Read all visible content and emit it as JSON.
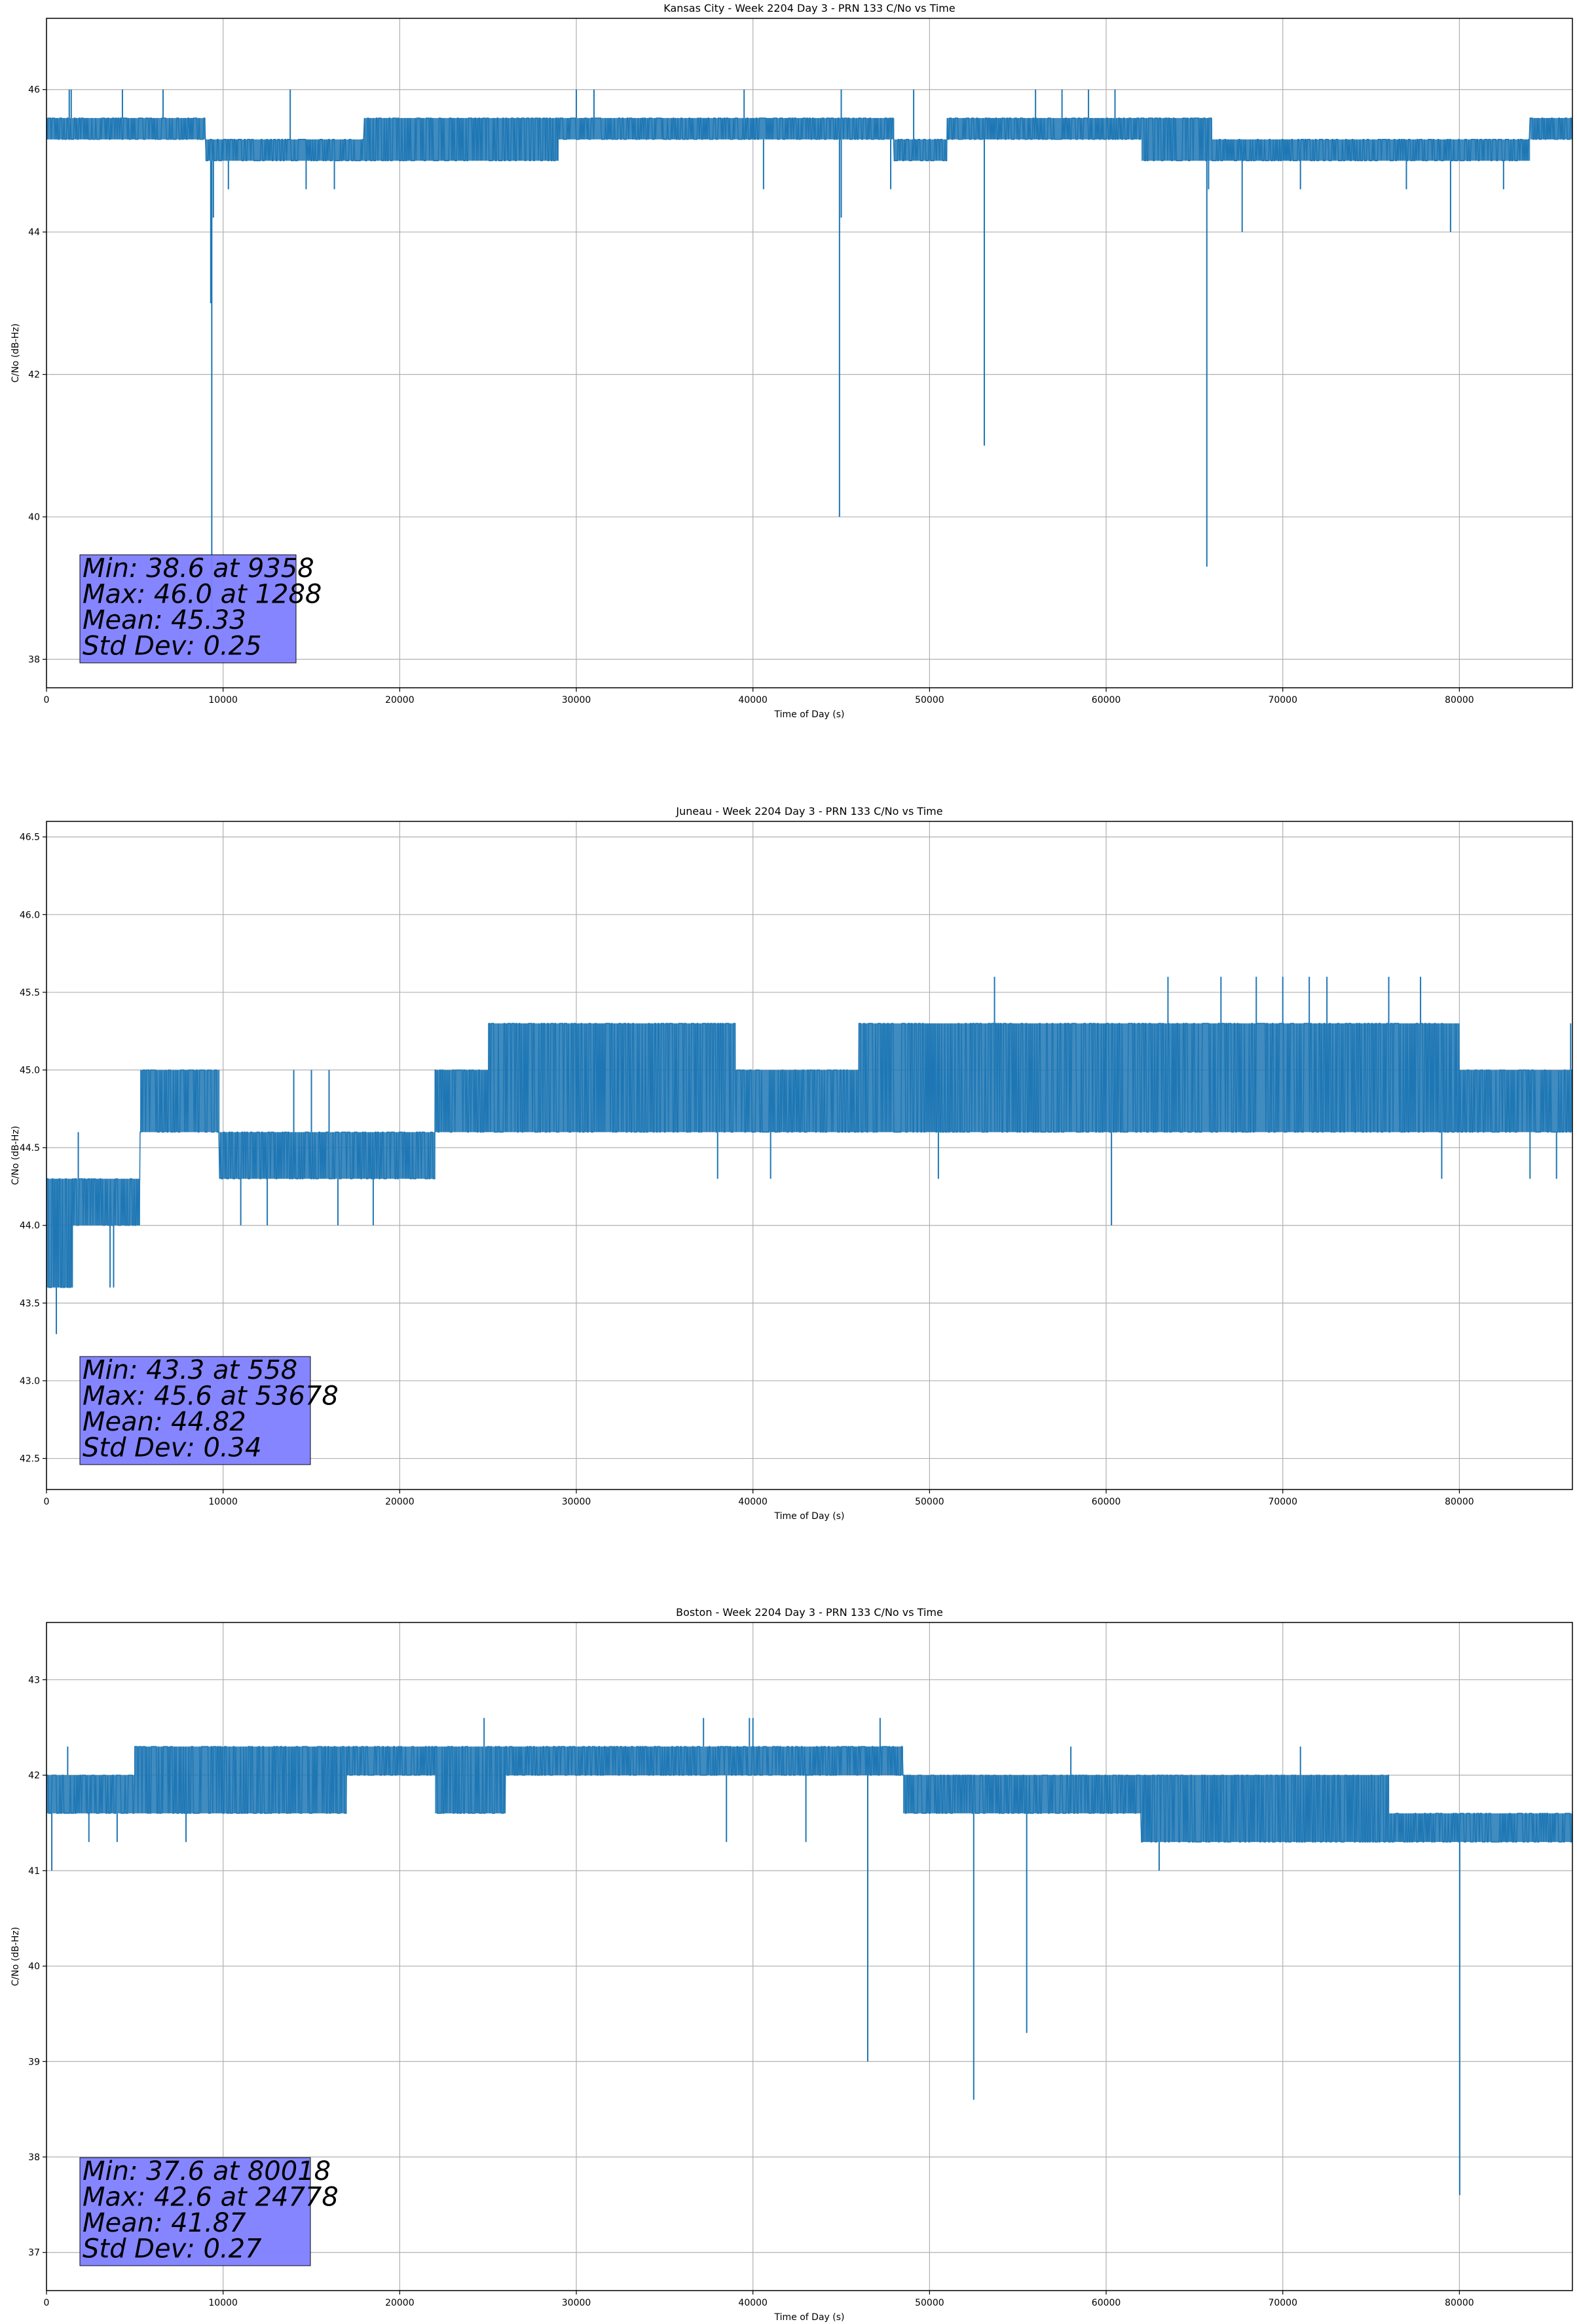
{
  "colors": {
    "series": "#1f77b4",
    "grid": "#b0b0b0",
    "axes": "#000000",
    "stats_box_fill": "#7f7fff",
    "stats_box_edge": "#000000"
  },
  "chart_data": [
    {
      "type": "line",
      "title": "Kansas City - Week 2204 Day 3 - PRN 133 C/No vs Time",
      "xlabel": "Time of Day (s)",
      "ylabel": "C/No (dB-Hz)",
      "xlim": [
        0,
        86400
      ],
      "ylim": [
        37.6,
        47.0
      ],
      "xticks": [
        0,
        10000,
        20000,
        30000,
        40000,
        50000,
        60000,
        70000,
        80000
      ],
      "yticks": [
        38,
        40,
        42,
        44,
        46
      ],
      "grid": true,
      "stats": [
        "Min: 38.6 at 9358",
        "Max: 46.0 at 1288",
        "Mean: 45.33",
        "Std Dev: 0.25"
      ],
      "segments": [
        {
          "x0": 0,
          "x1": 9000,
          "lo": 45.3,
          "hi": 45.6
        },
        {
          "x0": 9000,
          "x1": 18000,
          "lo": 45.0,
          "hi": 45.3
        },
        {
          "x0": 18000,
          "x1": 29000,
          "lo": 45.0,
          "hi": 45.6
        },
        {
          "x0": 29000,
          "x1": 40000,
          "lo": 45.3,
          "hi": 45.6
        },
        {
          "x0": 40000,
          "x1": 48000,
          "lo": 45.3,
          "hi": 45.6
        },
        {
          "x0": 48000,
          "x1": 51000,
          "lo": 45.0,
          "hi": 45.3
        },
        {
          "x0": 51000,
          "x1": 55000,
          "lo": 45.3,
          "hi": 45.6
        },
        {
          "x0": 55000,
          "x1": 62000,
          "lo": 45.3,
          "hi": 45.6
        },
        {
          "x0": 62000,
          "x1": 66000,
          "lo": 45.0,
          "hi": 45.6
        },
        {
          "x0": 66000,
          "x1": 84000,
          "lo": 45.0,
          "hi": 45.3
        },
        {
          "x0": 84000,
          "x1": 86400,
          "lo": 45.3,
          "hi": 45.6
        }
      ],
      "spikes": [
        {
          "x": 9358,
          "y": 38.6
        },
        {
          "x": 9300,
          "y": 43.0
        },
        {
          "x": 9450,
          "y": 44.2
        },
        {
          "x": 44900,
          "y": 40.0
        },
        {
          "x": 45000,
          "y": 44.2
        },
        {
          "x": 53100,
          "y": 41.0
        },
        {
          "x": 65700,
          "y": 39.3
        },
        {
          "x": 65800,
          "y": 44.6
        },
        {
          "x": 67700,
          "y": 44.0
        },
        {
          "x": 79500,
          "y": 44.0
        },
        {
          "x": 10300,
          "y": 44.6
        },
        {
          "x": 14700,
          "y": 44.6
        },
        {
          "x": 16300,
          "y": 44.6
        },
        {
          "x": 40600,
          "y": 44.6
        },
        {
          "x": 47800,
          "y": 44.6
        },
        {
          "x": 71000,
          "y": 44.6
        },
        {
          "x": 77000,
          "y": 44.6
        },
        {
          "x": 82500,
          "y": 44.6
        }
      ],
      "peaks": [
        {
          "x": 1288,
          "y": 46.0
        },
        {
          "x": 1400,
          "y": 46.0
        },
        {
          "x": 4300,
          "y": 46.0
        },
        {
          "x": 6600,
          "y": 46.0
        },
        {
          "x": 13800,
          "y": 46.0
        },
        {
          "x": 30000,
          "y": 46.0
        },
        {
          "x": 31000,
          "y": 46.0
        },
        {
          "x": 39500,
          "y": 46.0
        },
        {
          "x": 45000,
          "y": 46.0
        },
        {
          "x": 49100,
          "y": 46.0
        },
        {
          "x": 56000,
          "y": 46.0
        },
        {
          "x": 57500,
          "y": 46.0
        },
        {
          "x": 59000,
          "y": 46.0
        },
        {
          "x": 60500,
          "y": 46.0
        }
      ]
    },
    {
      "type": "line",
      "title": "Juneau - Week 2204 Day 3 - PRN 133 C/No vs Time",
      "xlabel": "Time of Day (s)",
      "ylabel": "C/No (dB-Hz)",
      "xlim": [
        0,
        86400
      ],
      "ylim": [
        42.3,
        46.6
      ],
      "xticks": [
        0,
        10000,
        20000,
        30000,
        40000,
        50000,
        60000,
        70000,
        80000
      ],
      "yticks": [
        42.5,
        43.0,
        43.5,
        44.0,
        44.5,
        45.0,
        45.5,
        46.0,
        46.5
      ],
      "grid": true,
      "stats": [
        "Min: 43.3 at 558",
        "Max: 45.6 at 53678",
        "Mean: 44.82",
        "Std Dev: 0.34"
      ],
      "segments": [
        {
          "x0": 0,
          "x1": 1500,
          "lo": 43.6,
          "hi": 44.3
        },
        {
          "x0": 1500,
          "x1": 5300,
          "lo": 44.0,
          "hi": 44.3
        },
        {
          "x0": 5300,
          "x1": 9800,
          "lo": 44.6,
          "hi": 45.0
        },
        {
          "x0": 9800,
          "x1": 16000,
          "lo": 44.3,
          "hi": 44.6
        },
        {
          "x0": 16000,
          "x1": 22000,
          "lo": 44.3,
          "hi": 44.6
        },
        {
          "x0": 22000,
          "x1": 25000,
          "lo": 44.6,
          "hi": 45.0
        },
        {
          "x0": 25000,
          "x1": 39000,
          "lo": 44.6,
          "hi": 45.3
        },
        {
          "x0": 39000,
          "x1": 46000,
          "lo": 44.6,
          "hi": 45.0
        },
        {
          "x0": 46000,
          "x1": 60000,
          "lo": 44.6,
          "hi": 45.3
        },
        {
          "x0": 60000,
          "x1": 80000,
          "lo": 44.6,
          "hi": 45.3
        },
        {
          "x0": 80000,
          "x1": 86400,
          "lo": 44.6,
          "hi": 45.0
        }
      ],
      "spikes": [
        {
          "x": 558,
          "y": 43.3
        },
        {
          "x": 1200,
          "y": 43.6
        },
        {
          "x": 3600,
          "y": 43.6
        },
        {
          "x": 3800,
          "y": 43.6
        },
        {
          "x": 11000,
          "y": 44.0
        },
        {
          "x": 12500,
          "y": 44.0
        },
        {
          "x": 16500,
          "y": 44.0
        },
        {
          "x": 18500,
          "y": 44.0
        },
        {
          "x": 60300,
          "y": 44.0
        },
        {
          "x": 38000,
          "y": 44.3
        },
        {
          "x": 41000,
          "y": 44.3
        },
        {
          "x": 50500,
          "y": 44.3
        },
        {
          "x": 79000,
          "y": 44.3
        },
        {
          "x": 84000,
          "y": 44.3
        },
        {
          "x": 85500,
          "y": 44.3
        }
      ],
      "peaks": [
        {
          "x": 53678,
          "y": 45.6
        },
        {
          "x": 63500,
          "y": 45.6
        },
        {
          "x": 66500,
          "y": 45.6
        },
        {
          "x": 68500,
          "y": 45.6
        },
        {
          "x": 70000,
          "y": 45.6
        },
        {
          "x": 71500,
          "y": 45.6
        },
        {
          "x": 72500,
          "y": 45.6
        },
        {
          "x": 76000,
          "y": 45.6
        },
        {
          "x": 77800,
          "y": 45.6
        },
        {
          "x": 1800,
          "y": 44.6
        },
        {
          "x": 14000,
          "y": 45.0
        },
        {
          "x": 15000,
          "y": 45.0
        },
        {
          "x": 16000,
          "y": 45.0
        },
        {
          "x": 25000,
          "y": 45.3
        },
        {
          "x": 86300,
          "y": 45.3
        }
      ]
    },
    {
      "type": "line",
      "title": "Boston - Week 2204 Day 3 - PRN 133 C/No vs Time",
      "xlabel": "Time of Day (s)",
      "ylabel": "C/No (dB-Hz)",
      "xlim": [
        0,
        86400
      ],
      "ylim": [
        36.6,
        43.6
      ],
      "xticks": [
        0,
        10000,
        20000,
        30000,
        40000,
        50000,
        60000,
        70000,
        80000
      ],
      "yticks": [
        37,
        38,
        39,
        40,
        41,
        42,
        43
      ],
      "grid": true,
      "stats": [
        "Min: 37.6 at 80018",
        "Max: 42.6 at 24778",
        "Mean: 41.87",
        "Std Dev: 0.27"
      ],
      "segments": [
        {
          "x0": 0,
          "x1": 5000,
          "lo": 41.6,
          "hi": 42.0
        },
        {
          "x0": 5000,
          "x1": 17000,
          "lo": 41.6,
          "hi": 42.3
        },
        {
          "x0": 17000,
          "x1": 22000,
          "lo": 42.0,
          "hi": 42.3
        },
        {
          "x0": 22000,
          "x1": 26000,
          "lo": 41.6,
          "hi": 42.3
        },
        {
          "x0": 26000,
          "x1": 48500,
          "lo": 42.0,
          "hi": 42.3
        },
        {
          "x0": 48500,
          "x1": 62000,
          "lo": 41.6,
          "hi": 42.0
        },
        {
          "x0": 62000,
          "x1": 76000,
          "lo": 41.3,
          "hi": 42.0
        },
        {
          "x0": 76000,
          "x1": 86400,
          "lo": 41.3,
          "hi": 41.6
        }
      ],
      "spikes": [
        {
          "x": 80018,
          "y": 37.6
        },
        {
          "x": 52500,
          "y": 38.6
        },
        {
          "x": 46500,
          "y": 39.0
        },
        {
          "x": 55500,
          "y": 39.3
        },
        {
          "x": 300,
          "y": 41.0
        },
        {
          "x": 7900,
          "y": 41.3
        },
        {
          "x": 38500,
          "y": 41.3
        },
        {
          "x": 43000,
          "y": 41.3
        },
        {
          "x": 63000,
          "y": 41.0
        },
        {
          "x": 2400,
          "y": 41.3
        },
        {
          "x": 4000,
          "y": 41.3
        }
      ],
      "peaks": [
        {
          "x": 24778,
          "y": 42.6
        },
        {
          "x": 37200,
          "y": 42.6
        },
        {
          "x": 39800,
          "y": 42.6
        },
        {
          "x": 40000,
          "y": 42.6
        },
        {
          "x": 47200,
          "y": 42.6
        },
        {
          "x": 1200,
          "y": 42.3
        },
        {
          "x": 58000,
          "y": 42.3
        },
        {
          "x": 71000,
          "y": 42.3
        }
      ]
    }
  ]
}
